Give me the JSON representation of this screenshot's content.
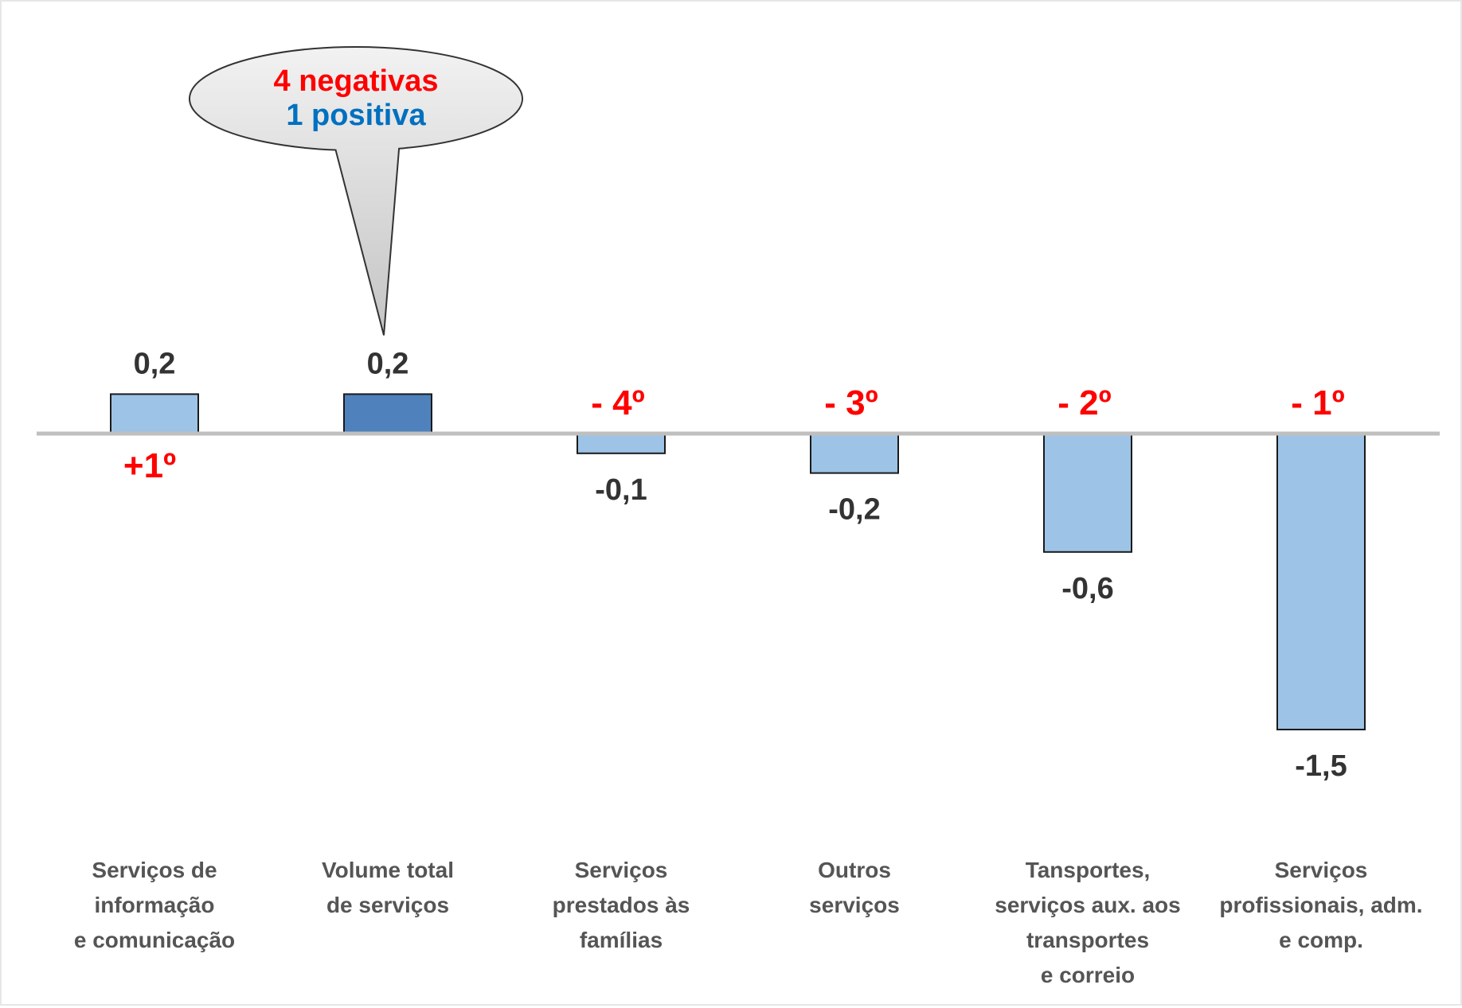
{
  "chart_data": {
    "type": "bar",
    "categories": [
      [
        "Serviços de",
        "informação",
        "e comunicação"
      ],
      [
        "Volume total",
        "de serviços"
      ],
      [
        "Serviços",
        "prestados às",
        "famílias"
      ],
      [
        "Outros",
        "serviços"
      ],
      [
        "Tansportes,",
        "serviços aux. aos",
        "transportes",
        "e correio"
      ],
      [
        "Serviços",
        "profissionais, adm.",
        "e comp."
      ]
    ],
    "values": [
      0.2,
      0.2,
      -0.1,
      -0.2,
      -0.6,
      -1.5
    ],
    "value_labels": [
      "0,2",
      "0,2",
      "-0,1",
      "-0,2",
      "-0,6",
      "-1,5"
    ],
    "rank_labels": [
      "+1º",
      "",
      "- 4º",
      "- 3º",
      "- 2º",
      "- 1º"
    ],
    "highlight_index": 1,
    "ylim": [
      -1.9,
      2.2
    ],
    "grid": false,
    "legend": "none",
    "callout": {
      "line1": "4 negativas",
      "line2": "1 positiva",
      "target_index": 1
    },
    "colors": {
      "bar": "#9dc3e6",
      "bar_highlight": "#4f81bd",
      "bar_stroke": "#1a1a1a",
      "baseline": "#bfbfbf",
      "rank_text": "#ff0000",
      "callout_negative": "#ff0000",
      "callout_positive": "#0070c0",
      "callout_fill": "#d4d4d4",
      "callout_stroke": "#333333"
    }
  }
}
